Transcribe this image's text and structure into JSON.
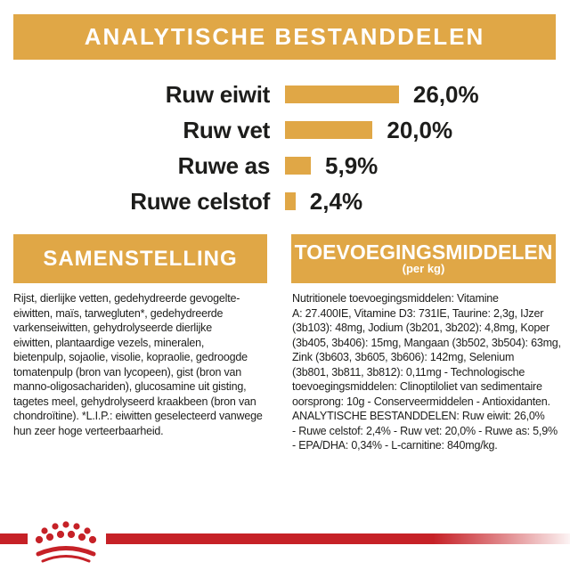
{
  "colors": {
    "gold": "#E0A746",
    "red": "#C62127",
    "text_dark": "#1d1d1b",
    "white": "#ffffff"
  },
  "header": {
    "title": "ANALYTISCHE BESTANDDELEN"
  },
  "chart_data": {
    "type": "bar",
    "orientation": "horizontal",
    "title": "ANALYTISCHE BESTANDDELEN",
    "categories": [
      "Ruw eiwit",
      "Ruw vet",
      "Ruwe as",
      "Ruwe celstof"
    ],
    "values": [
      26.0,
      20.0,
      5.9,
      2.4
    ],
    "value_labels": [
      "26,0%",
      "20,0%",
      "5,9%",
      "2,4%"
    ],
    "unit": "%",
    "xlim": [
      0,
      30
    ],
    "bar_color": "#E0A746",
    "grid": false,
    "legend": "none"
  },
  "sections": {
    "samenstelling": {
      "title": "SAMENSTELLING",
      "body_lines": [
        "Rijst, dierlijke vetten, gedehydreerde gevogelte-",
        "eiwitten, maïs, tarwegluten*, gedehydreerde",
        "varkenseiwitten, gehydrolyseerde dierlijke",
        "eiwitten, plantaardige vezels, mineralen,",
        "bietenpulp, sojaolie, visolie, kopraolie, gedroogde",
        "tomatenpulp (bron van lycopeen), gist (bron van",
        "manno-oligosachariden), glucosamine uit gisting,",
        "tagetes meel, gehydrolyseerd kraakbeen (bron van",
        "chondroïtine). *L.I.P.: eiwitten geselecteerd vanwege",
        "hun zeer hoge verteerbaarheid."
      ]
    },
    "toevoegingsmiddelen": {
      "title": "TOEVOEGINGSMIDDELEN",
      "subtitle": "(per kg)",
      "body_lines": [
        "Nutritionele toevoegingsmiddelen: Vitamine",
        "A: 27.400IE, Vitamine D3: 731IE, Taurine: 2,3g, IJzer",
        "(3b103): 48mg, Jodium (3b201, 3b202): 4,8mg, Koper",
        "(3b405, 3b406): 15mg, Mangaan (3b502, 3b504): 63mg,",
        "Zink (3b603, 3b605, 3b606): 142mg, Selenium",
        "(3b801, 3b811, 3b812): 0,11mg - Technologische",
        "toevoegingsmiddelen: Clinoptiloliet van sedimentaire",
        "oorsprong: 10g - Conserveermiddelen - Antioxidanten.",
        "ANALYTISCHE BESTANDDELEN: Ruw eiwit: 26,0%",
        "- Ruwe celstof: 2,4% - Ruw vet: 20,0% - Ruwe as: 5,9%",
        "- EPA/DHA: 0,34% - L-carnitine: 840mg/kg."
      ]
    }
  },
  "footer": {
    "logo_icon": "royal-canin-crown-icon"
  }
}
